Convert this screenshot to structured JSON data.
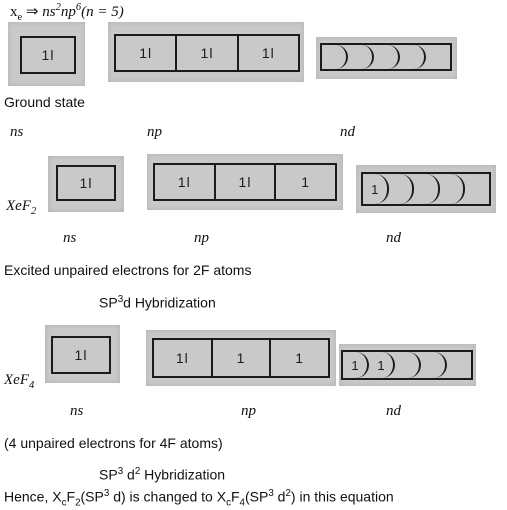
{
  "header": {
    "formula_left": "x",
    "formula_left_sub": "e",
    "formula_arrow": "⇒",
    "formula_ns": "ns",
    "formula_ns_sup": "2",
    "formula_np": "np",
    "formula_np_sup": "6",
    "formula_n": "(n = 5)"
  },
  "ground": {
    "s_cells": [
      "1l"
    ],
    "p_cells": [
      "1l",
      "1l",
      "1l"
    ],
    "d_cells": [
      "",
      "",
      "",
      "",
      ""
    ],
    "state_label": "Ground state",
    "label_ns": "ns",
    "label_np": "np",
    "label_nd": "nd"
  },
  "xef2": {
    "molecule": "XeF",
    "molecule_sub": "2",
    "s_cells": [
      "1l"
    ],
    "p_cells": [
      "1l",
      "1l",
      "1"
    ],
    "d_cells": [
      "1",
      "",
      "",
      "",
      ""
    ],
    "label_ns": "ns",
    "label_np": "np",
    "label_nd": "nd",
    "note": "Excited unpaired electrons for 2F atoms",
    "hybrid_prefix": "SP",
    "hybrid_sup": "3",
    "hybrid_suffix": "d Hybridization"
  },
  "xef4": {
    "molecule": "XeF",
    "molecule_sub": "4",
    "s_cells": [
      "1l"
    ],
    "p_cells": [
      "1l",
      "1",
      "1"
    ],
    "d_cells": [
      "1",
      "1",
      "",
      "",
      ""
    ],
    "label_ns": "ns",
    "label_np": "np",
    "label_nd": "nd",
    "note": "(4 unpaired electrons for 4F atoms)",
    "hybrid_prefix": "SP",
    "hybrid_sup": "3",
    "hybrid_mid": " d",
    "hybrid_sup2": "2",
    "hybrid_suffix": " Hybridization"
  },
  "conclusion": {
    "lead": "Hence, X",
    "lead_sub": "c",
    "f2": "F",
    "f2_sub": "2",
    "f2_paren": "(SP",
    "f2_sup": "3",
    "f2_end": " d)",
    "middle": " is changed to X",
    "mid_sub": "c",
    "f4": "F",
    "f4_sub": "4",
    "f4_paren": "(SP",
    "f4_sup": "3",
    "f4_mid": " d",
    "f4_sup2": "2",
    "f4_end": ")",
    "tail": " in this equation"
  }
}
